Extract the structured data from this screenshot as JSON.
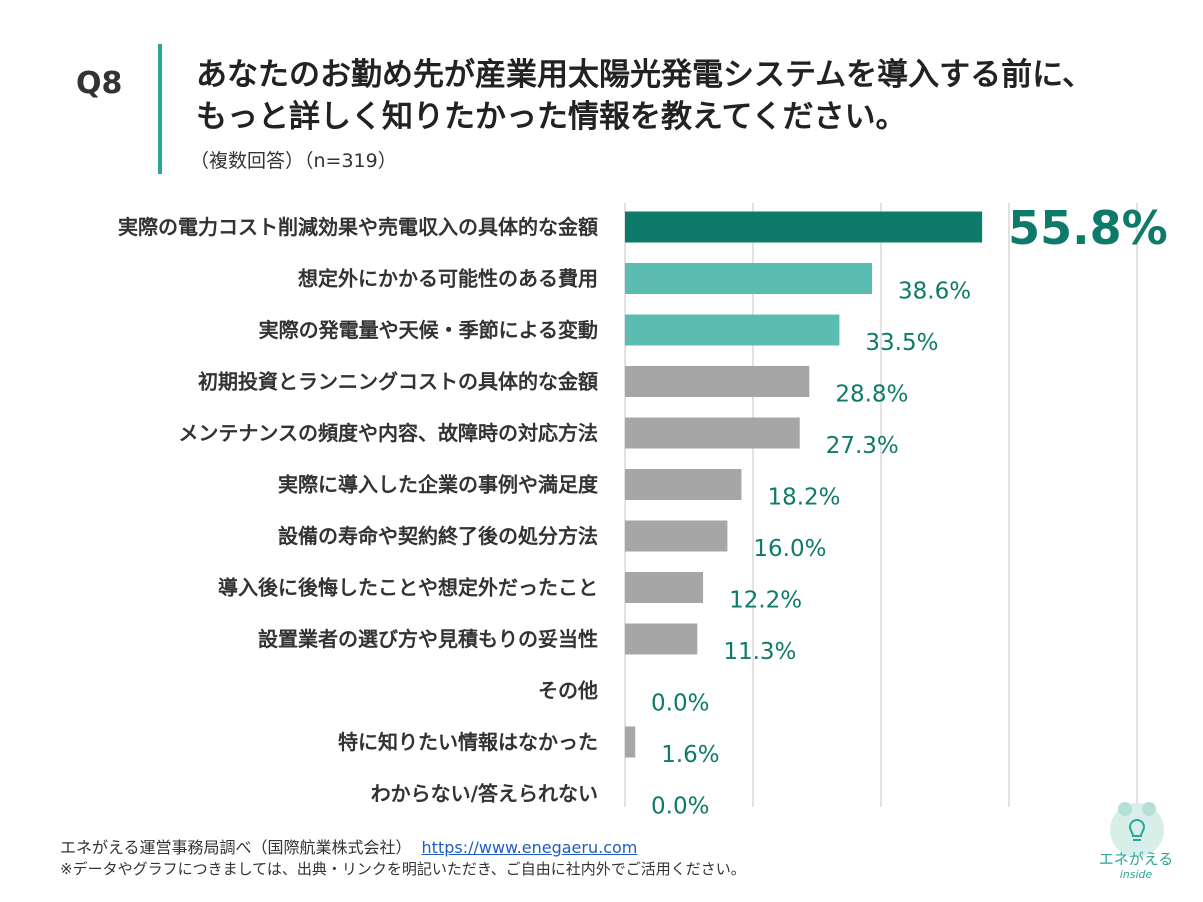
{
  "header": {
    "question": "Q8",
    "title_line1": "あなたのお勤め先が産業用太陽光発電システムを導入する前に、",
    "title_line2": "もっと詳しく知りたかった情報を教えてください。",
    "subtitle": "（複数回答）（n=319）"
  },
  "chart_data": {
    "type": "bar",
    "orientation": "horizontal",
    "title": "あなたのお勤め先が産業用太陽光発電システムを導入する前に、もっと詳しく知りたかった情報を教えてください。",
    "xlabel": "",
    "ylabel": "",
    "xlim": [
      0,
      80
    ],
    "grid": true,
    "unit": "%",
    "categories": [
      "実際の電力コスト削減効果や売電収入の具体的な金額",
      "想定外にかかる可能性のある費用",
      "実際の発電量や天候・季節による変動",
      "初期投資とランニングコストの具体的な金額",
      "メンテナンスの頻度や内容、故障時の対応方法",
      "実際に導入した企業の事例や満足度",
      "設備の寿命や契約終了後の処分方法",
      "導入後に後悔したことや想定外だったこと",
      "設置業者の選び方や見積もりの妥当性",
      "その他",
      "特に知りたい情報はなかった",
      "わからない/答えられない"
    ],
    "values": [
      55.8,
      38.6,
      33.5,
      28.8,
      27.3,
      18.2,
      16.0,
      12.2,
      11.3,
      0.0,
      1.6,
      0.0
    ],
    "value_labels": [
      "55.8%",
      "38.6%",
      "33.5%",
      "28.8%",
      "27.3%",
      "18.2%",
      "16.0%",
      "12.2%",
      "11.3%",
      "0.0%",
      "1.6%",
      "0.0%"
    ],
    "highlight": [
      0
    ],
    "colors": [
      "#0e7a69",
      "#5bbdb2",
      "#5bbdb2",
      "#a6a6a6",
      "#a6a6a6",
      "#a6a6a6",
      "#a6a6a6",
      "#a6a6a6",
      "#a6a6a6",
      "#a6a6a6",
      "#a6a6a6",
      "#a6a6a6"
    ],
    "gridline_color": "#d9d9d9",
    "label_color": "#0e7a69"
  },
  "footer": {
    "source": "エネがえる運営事務局調べ（国際航業株式会社）",
    "url": "https://www.enegaeru.com",
    "note": "※データやグラフにつきましては、出典・リンクを明記いただき、ご自由に社内外でご活用ください。"
  },
  "logo": {
    "name": "エネがえる",
    "sub": "inside",
    "icon": "frog-bulb-icon"
  }
}
